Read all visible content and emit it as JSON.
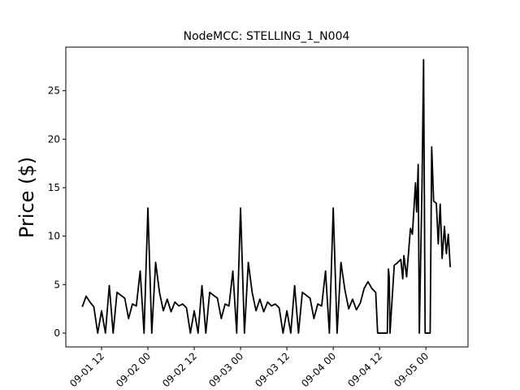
{
  "chart_data": {
    "type": "line",
    "title": "NodeMCC: STELLING_1_N004",
    "ylabel": "Price ($)",
    "color": "#000000",
    "x": [
      7,
      8,
      9,
      10,
      11,
      12,
      13,
      14,
      15,
      16,
      17,
      18,
      19,
      20,
      21,
      22,
      23,
      24,
      25,
      26,
      27,
      28,
      29,
      30,
      31,
      32,
      33,
      34,
      35,
      36,
      37,
      38,
      39,
      40,
      41,
      42,
      43,
      44,
      45,
      46,
      47,
      48,
      49,
      50,
      51,
      52,
      53,
      54,
      55,
      56,
      57,
      58,
      59,
      60,
      61,
      62,
      63,
      64,
      65,
      66,
      67,
      68,
      69,
      70,
      71,
      72,
      73,
      74,
      75,
      76,
      77,
      78,
      79,
      80,
      81,
      82,
      83,
      83.5,
      86,
      86.3,
      86.5,
      86.7,
      87.8,
      88.5,
      89.5,
      90,
      90.3,
      91,
      92,
      92.5,
      93.3,
      93.6,
      94,
      94.3,
      95,
      95.4,
      95.8,
      97.1,
      97.5,
      98,
      98.7,
      99.2,
      99.7,
      100.2,
      100.8,
      101.3,
      101.8,
      102.3
    ],
    "values": [
      2.7,
      3.8,
      3.2,
      2.7,
      0,
      2.3,
      0,
      4.9,
      0,
      4.2,
      3.9,
      3.6,
      1.5,
      3.0,
      2.8,
      6.4,
      0,
      12.9,
      0,
      7.3,
      4.2,
      2.3,
      3.5,
      2.2,
      3.2,
      2.8,
      3.0,
      2.6,
      0,
      2.3,
      0,
      4.9,
      0,
      4.2,
      3.9,
      3.6,
      1.5,
      3.0,
      2.8,
      6.4,
      0,
      12.9,
      0,
      7.3,
      4.2,
      2.3,
      3.5,
      2.2,
      3.2,
      2.8,
      3.0,
      2.6,
      0,
      2.3,
      0,
      4.9,
      0,
      4.2,
      3.9,
      3.6,
      1.5,
      3.0,
      2.8,
      6.4,
      0,
      12.9,
      0,
      7.3,
      4.5,
      2.5,
      3.5,
      2.4,
      3.1,
      4.6,
      5.3,
      4.6,
      4.2,
      0,
      0,
      6.6,
      5.8,
      0,
      7.0,
      7.2,
      7.6,
      5.6,
      8.0,
      5.8,
      10.8,
      10.2,
      15.5,
      12.5,
      17.4,
      0,
      15.5,
      28.2,
      0,
      0,
      19.2,
      13.6,
      13.4,
      9.2,
      13.3,
      7.7,
      11.0,
      8.2,
      10.2,
      6.8
    ],
    "xlim": [
      2.74,
      106.9
    ],
    "xticks": [
      {
        "value": 12,
        "label": "09-01 12"
      },
      {
        "value": 24,
        "label": "09-02 00"
      },
      {
        "value": 36,
        "label": "09-02 12"
      },
      {
        "value": 48,
        "label": "09-03 00"
      },
      {
        "value": 60,
        "label": "09-03 12"
      },
      {
        "value": 72,
        "label": "09-04 00"
      },
      {
        "value": 84,
        "label": "09-04 12"
      },
      {
        "value": 96,
        "label": "09-05 00"
      }
    ],
    "ylim": [
      -1.43,
      29.5
    ],
    "yticks": [
      0,
      5,
      10,
      15,
      20,
      25
    ]
  }
}
